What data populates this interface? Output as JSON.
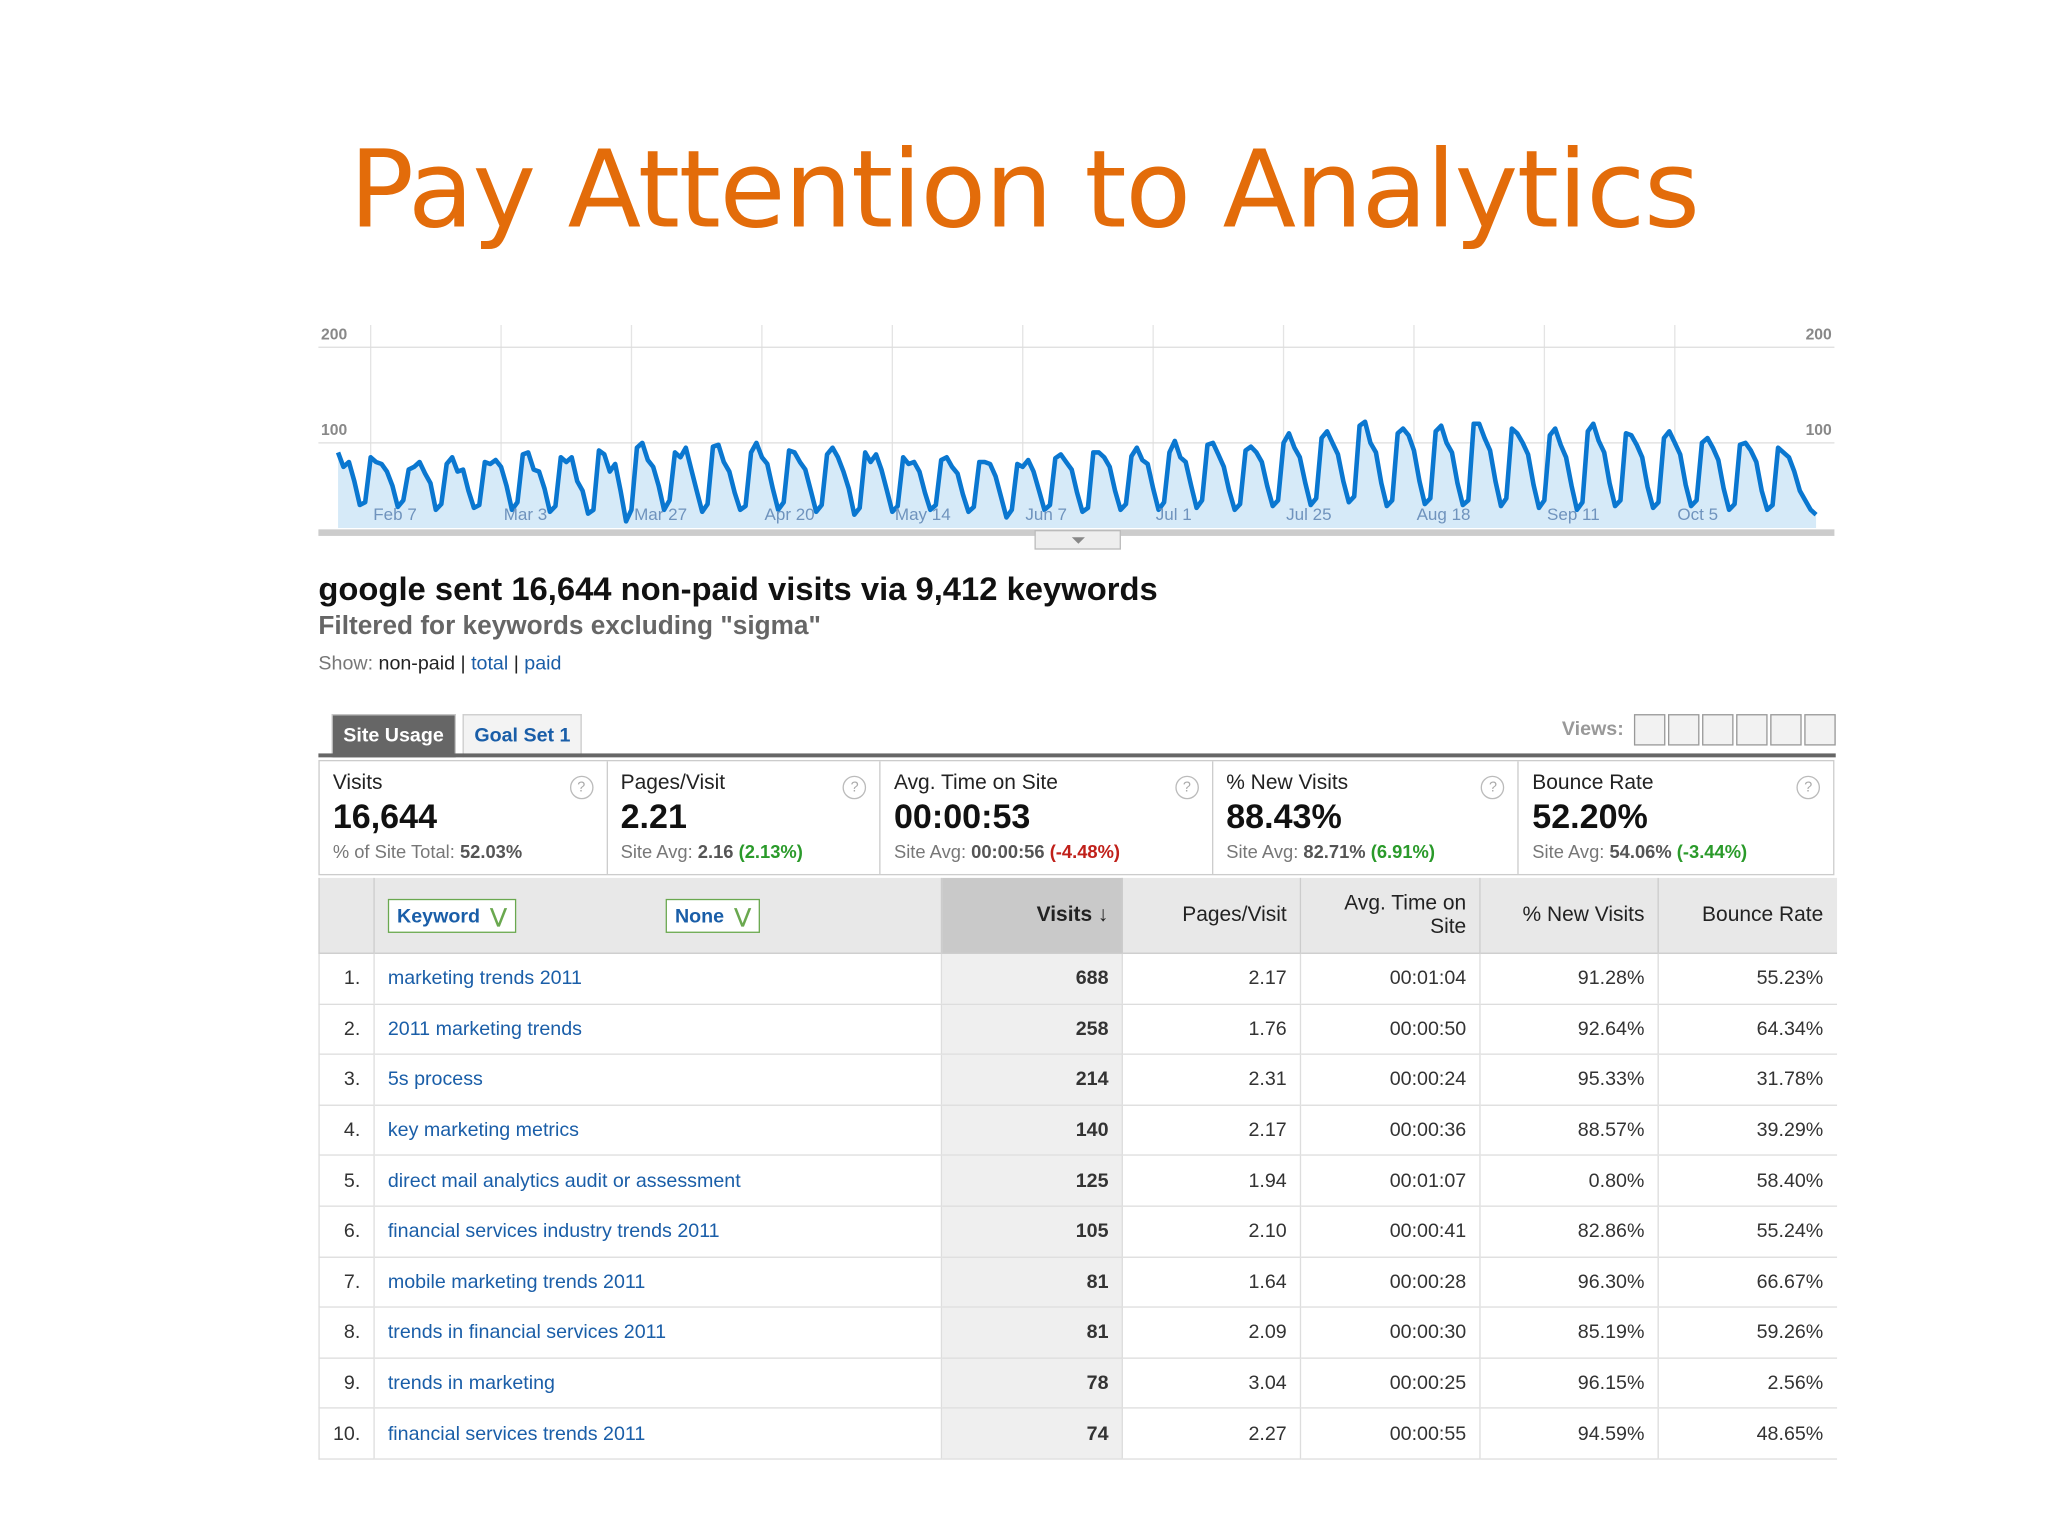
{
  "title": "Pay Attention to Analytics",
  "chart_data": {
    "type": "line",
    "color": "#0a77d0",
    "fill": "#d6eaf8",
    "ylim": [
      0,
      200
    ],
    "yticks": [
      100,
      200
    ],
    "grid": true,
    "xticks": [
      {
        "value": 6,
        "label": "Feb 7"
      },
      {
        "value": 30,
        "label": "Mar 3"
      },
      {
        "value": 54,
        "label": "Mar 27"
      },
      {
        "value": 78,
        "label": "Apr 20"
      },
      {
        "value": 102,
        "label": "May 14"
      },
      {
        "value": 126,
        "label": "Jun 7"
      },
      {
        "value": 150,
        "label": "Jul 1"
      },
      {
        "value": 174,
        "label": "Jul 25"
      },
      {
        "value": 198,
        "label": "Aug 18"
      },
      {
        "value": 222,
        "label": "Sep 11"
      },
      {
        "value": 246,
        "label": "Oct 5"
      }
    ],
    "values": [
      90,
      75,
      80,
      60,
      35,
      38,
      85,
      80,
      78,
      70,
      55,
      33,
      40,
      72,
      75,
      80,
      68,
      58,
      30,
      36,
      78,
      85,
      70,
      72,
      50,
      32,
      35,
      80,
      78,
      82,
      75,
      55,
      30,
      38,
      88,
      90,
      72,
      70,
      52,
      28,
      34,
      85,
      80,
      85,
      60,
      50,
      26,
      30,
      92,
      88,
      70,
      78,
      50,
      18,
      30,
      95,
      100,
      82,
      75,
      55,
      30,
      40,
      90,
      85,
      95,
      72,
      50,
      28,
      36,
      96,
      98,
      80,
      70,
      48,
      30,
      34,
      90,
      100,
      85,
      78,
      52,
      30,
      38,
      92,
      90,
      80,
      72,
      50,
      28,
      35,
      88,
      95,
      85,
      70,
      52,
      25,
      32,
      90,
      80,
      88,
      72,
      50,
      28,
      34,
      85,
      78,
      80,
      70,
      48,
      30,
      35,
      82,
      85,
      75,
      68,
      46,
      28,
      33,
      80,
      80,
      78,
      65,
      44,
      22,
      30,
      78,
      75,
      82,
      70,
      50,
      30,
      35,
      84,
      88,
      80,
      72,
      48,
      28,
      32,
      90,
      90,
      85,
      75,
      50,
      30,
      36,
      86,
      95,
      82,
      78,
      52,
      30,
      38,
      90,
      102,
      85,
      80,
      55,
      32,
      40,
      98,
      100,
      88,
      75,
      50,
      30,
      36,
      92,
      96,
      90,
      80,
      55,
      34,
      40,
      100,
      110,
      95,
      85,
      58,
      35,
      42,
      105,
      112,
      100,
      88,
      60,
      38,
      44,
      118,
      122,
      100,
      90,
      58,
      34,
      40,
      110,
      115,
      108,
      92,
      60,
      36,
      42,
      112,
      118,
      100,
      90,
      58,
      35,
      40,
      120,
      120,
      105,
      92,
      60,
      34,
      42,
      115,
      110,
      100,
      88,
      56,
      32,
      40,
      108,
      115,
      98,
      85,
      55,
      30,
      38,
      112,
      120,
      102,
      90,
      58,
      34,
      40,
      110,
      108,
      98,
      85,
      54,
      32,
      38,
      105,
      112,
      100,
      88,
      56,
      34,
      40,
      100,
      105,
      95,
      82,
      52,
      30,
      36,
      98,
      100,
      92,
      80,
      50,
      30,
      35,
      95,
      90,
      85,
      70,
      50,
      40,
      30,
      25
    ]
  },
  "report": {
    "heading": "google sent 16,644 non-paid visits via 9,412 keywords",
    "subheading": "Filtered for keywords excluding \"sigma\"",
    "show_label": "Show:",
    "show_options": [
      "non-paid",
      "total",
      "paid"
    ],
    "tabs": [
      "Site Usage",
      "Goal Set 1"
    ],
    "views_label": "Views:"
  },
  "metrics": [
    {
      "label": "Visits",
      "value": "16,644",
      "site_label": "% of Site Total:",
      "site_value": "52.03%"
    },
    {
      "label": "Pages/Visit",
      "value": "2.21",
      "site_label": "Site Avg:",
      "site_value": "2.16",
      "change": "(2.13%)"
    },
    {
      "label": "Avg. Time on Site",
      "value": "00:00:53",
      "site_label": "Site Avg:",
      "site_value": "00:00:56",
      "change": "(-4.48%)"
    },
    {
      "label": "% New Visits",
      "value": "88.43%",
      "site_label": "Site Avg:",
      "site_value": "82.71%",
      "change": "(6.91%)"
    },
    {
      "label": "Bounce Rate",
      "value": "52.20%",
      "site_label": "Site Avg:",
      "site_value": "54.06%",
      "change": "(-3.44%)"
    }
  ],
  "table": {
    "columns": [
      "Keyword",
      "None",
      "Visits",
      "Pages/Visit",
      "Avg. Time on Site",
      "% New Visits",
      "Bounce Rate"
    ],
    "rows": [
      [
        "1.",
        "marketing trends 2011",
        "688",
        "2.17",
        "00:01:04",
        "91.28%",
        "55.23%"
      ],
      [
        "2.",
        "2011 marketing trends",
        "258",
        "1.76",
        "00:00:50",
        "92.64%",
        "64.34%"
      ],
      [
        "3.",
        "5s process",
        "214",
        "2.31",
        "00:00:24",
        "95.33%",
        "31.78%"
      ],
      [
        "4.",
        "key marketing metrics",
        "140",
        "2.17",
        "00:00:36",
        "88.57%",
        "39.29%"
      ],
      [
        "5.",
        "direct mail analytics audit or assessment",
        "125",
        "1.94",
        "00:01:07",
        "0.80%",
        "58.40%"
      ],
      [
        "6.",
        "financial services industry trends 2011",
        "105",
        "2.10",
        "00:00:41",
        "82.86%",
        "55.24%"
      ],
      [
        "7.",
        "mobile marketing trends 2011",
        "81",
        "1.64",
        "00:00:28",
        "96.30%",
        "66.67%"
      ],
      [
        "8.",
        "trends in financial services 2011",
        "81",
        "2.09",
        "00:00:30",
        "85.19%",
        "59.26%"
      ],
      [
        "9.",
        "trends in marketing",
        "78",
        "3.04",
        "00:00:25",
        "96.15%",
        "2.56%"
      ],
      [
        "10.",
        "financial services trends 2011",
        "74",
        "2.27",
        "00:00:55",
        "94.59%",
        "48.65%"
      ]
    ]
  }
}
